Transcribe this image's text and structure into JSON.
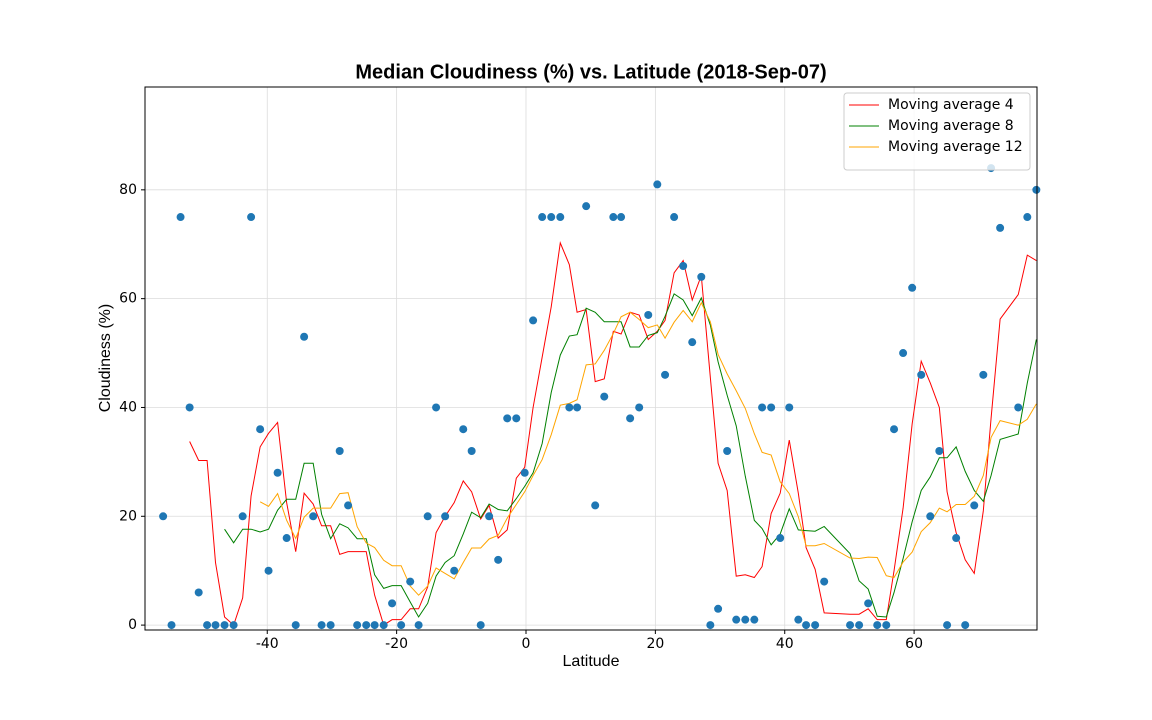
{
  "chart_data": {
    "type": "scatter",
    "title": "Median Cloudiness (%) vs. Latitude (2018-Sep-07)",
    "xlabel": "Latitude",
    "ylabel": "Cloudiness (%)",
    "xlim": [
      -58.9,
      79.0
    ],
    "ylim": [
      -0.9,
      98.9
    ],
    "xticks": [
      -40,
      -20,
      0,
      20,
      40,
      60
    ],
    "yticks": [
      0,
      20,
      40,
      60,
      80
    ],
    "grid": true,
    "legend_loc": "upper right",
    "color": "#1f77b4",
    "x": [
      -56.1,
      -54.8,
      -53.4,
      -52.0,
      -50.6,
      -49.3,
      -48.0,
      -46.6,
      -45.2,
      -43.8,
      -42.5,
      -41.1,
      -39.8,
      -38.4,
      -37.0,
      -35.6,
      -34.3,
      -32.9,
      -31.6,
      -30.2,
      -28.8,
      -27.5,
      -26.1,
      -24.7,
      -23.4,
      -22.0,
      -20.7,
      -19.3,
      -17.9,
      -16.6,
      -15.2,
      -13.9,
      -12.5,
      -11.1,
      -9.7,
      -8.4,
      -7.0,
      -5.7,
      -4.3,
      -2.9,
      -1.5,
      -0.2,
      1.1,
      2.5,
      3.9,
      5.3,
      6.7,
      7.9,
      9.3,
      10.7,
      12.1,
      13.5,
      14.7,
      16.1,
      17.5,
      18.9,
      20.3,
      21.5,
      22.9,
      24.3,
      25.7,
      27.1,
      28.5,
      29.7,
      31.1,
      32.5,
      33.9,
      35.3,
      36.5,
      37.9,
      39.3,
      40.7,
      42.1,
      43.3,
      44.7,
      46.1,
      50.1,
      51.5,
      52.9,
      54.3,
      55.7,
      56.9,
      58.3,
      59.7,
      61.1,
      62.5,
      63.9,
      65.1,
      66.5,
      67.9,
      69.3,
      70.7,
      71.9,
      73.3,
      76.1,
      77.5,
      78.9
    ],
    "values": [
      20,
      0,
      75,
      40,
      6,
      0,
      0,
      0,
      0,
      20,
      75,
      36,
      10,
      28,
      16,
      0,
      53,
      20,
      0,
      0,
      32,
      22,
      0,
      0,
      0,
      0,
      4,
      0,
      8,
      0,
      20,
      40,
      20,
      10,
      36,
      32,
      0,
      20,
      12,
      38,
      38,
      28,
      56,
      75,
      75,
      75,
      40,
      40,
      77,
      22,
      42,
      75,
      75,
      38,
      40,
      57,
      81,
      46,
      75,
      66,
      52,
      64,
      0,
      3,
      32,
      1,
      1,
      1,
      40,
      40,
      16,
      40,
      1,
      0,
      0,
      8,
      0,
      0,
      4,
      0,
      0,
      36,
      50,
      62,
      46,
      20,
      32,
      0,
      16,
      0,
      22,
      46,
      84,
      73,
      40,
      75,
      80
    ],
    "series": [
      {
        "name": "Moving average 4",
        "color": "#ff0000",
        "values": [
          null,
          null,
          null,
          33.75,
          30.25,
          30.25,
          11.5,
          1.5,
          0,
          5,
          23.75,
          32.75,
          35.25,
          37.25,
          22.5,
          13.5,
          24.25,
          22.25,
          18.25,
          18.25,
          13,
          13.5,
          13.5,
          13.5,
          5.5,
          0,
          1,
          1,
          3,
          3,
          7,
          17,
          20,
          22.5,
          26.5,
          24.5,
          19.5,
          22,
          16,
          17.5,
          27,
          29,
          40,
          49.25,
          58.5,
          70.25,
          66.25,
          57.5,
          58,
          44.75,
          45.25,
          54,
          53.5,
          57.5,
          57,
          52.5,
          54,
          56,
          64.75,
          67,
          59.75,
          64.25,
          45.5,
          29.75,
          24.75,
          9,
          9.25,
          8.75,
          10.75,
          20.5,
          24.25,
          34,
          24.25,
          14.25,
          10.25,
          2.25,
          2,
          2,
          3,
          1,
          1,
          10,
          21.5,
          37,
          48.5,
          44.5,
          40,
          24.5,
          17,
          12,
          9.5,
          21,
          38,
          56.25,
          60.75,
          68,
          67
        ]
      },
      {
        "name": "Moving average 8",
        "color": "#008000",
        "values": [
          null,
          null,
          null,
          null,
          null,
          null,
          null,
          17.625,
          15.125,
          17.625,
          17.625,
          17.125,
          17.625,
          21.125,
          23.125,
          23.125,
          29.75,
          29.75,
          20.375,
          15.875,
          18.625,
          17.875,
          15.875,
          15.875,
          9.25,
          6.75,
          7.25,
          7.25,
          4.25,
          1.5,
          4,
          9,
          11.5,
          12.75,
          16.75,
          20.75,
          19.75,
          22.25,
          21.25,
          21,
          23.25,
          25.5,
          28,
          33.375,
          42.75,
          49.625,
          53.125,
          53.375,
          58.25,
          57.5,
          55.75,
          55.75,
          55.75,
          51.125,
          51.125,
          53.25,
          53.75,
          56.75,
          60.875,
          59.75,
          56.875,
          60.125,
          55.125,
          48.375,
          42.25,
          36.625,
          27.375,
          19.25,
          17.75,
          14.75,
          16.75,
          21.375,
          17.5,
          17.375,
          17.25,
          18.125,
          13.125,
          8.125,
          6.625,
          1.625,
          1.5,
          6,
          12.25,
          19,
          24.75,
          27.25,
          30.75,
          30.75,
          32.75,
          28.25,
          24.75,
          22.75,
          27.5,
          34.125,
          35.125,
          44.5,
          52.5
        ]
      },
      {
        "name": "Moving average 12",
        "color": "#ffa500",
        "values": [
          null,
          null,
          null,
          null,
          null,
          null,
          null,
          null,
          null,
          null,
          null,
          22.67,
          21.83,
          24.17,
          19.25,
          15.92,
          19.83,
          21.5,
          21.5,
          21.5,
          24.17,
          24.33,
          18.08,
          15.08,
          14.25,
          11.92,
          10.92,
          10.92,
          7.17,
          5.5,
          7.17,
          10.5,
          9.5,
          8.5,
          11.5,
          14.17,
          14.17,
          15.83,
          16.5,
          19.67,
          22.17,
          24.5,
          27.5,
          30.42,
          35,
          40.42,
          40.75,
          41.42,
          47.83,
          48,
          50.5,
          53.58,
          56.67,
          57.5,
          56.17,
          54.67,
          55.17,
          52.75,
          55.67,
          57.83,
          55.75,
          59.25,
          55.75,
          49.75,
          46.17,
          43.08,
          39.83,
          35.17,
          31.75,
          31.25,
          26.33,
          24.17,
          19.92,
          14.58,
          14.58,
          15,
          12.33,
          12.25,
          12.5,
          12.42,
          9.08,
          8.75,
          11.58,
          13.42,
          17.17,
          18.83,
          21.5,
          20.83,
          22.17,
          22.17,
          23.67,
          27.5,
          34.5,
          37.58,
          36.75,
          37.83,
          40.67
        ]
      }
    ]
  }
}
